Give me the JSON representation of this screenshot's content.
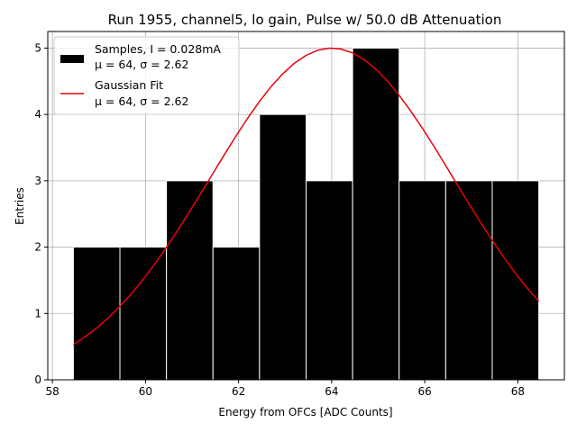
{
  "chart_data": {
    "type": "bar",
    "title": "Run 1955, channel5, lo gain, Pulse w/ 50.0 dB Attenuation",
    "xlabel": "Energy from OFCs [ADC Counts]",
    "ylabel": "Entries",
    "xlim": [
      57.9,
      69.0
    ],
    "ylim": [
      0,
      5.25
    ],
    "xticks": [
      58,
      60,
      62,
      64,
      66,
      68
    ],
    "yticks": [
      0,
      1,
      2,
      3,
      4,
      5
    ],
    "grid": true,
    "legend_position": "top-left",
    "bins": {
      "edges": [
        58.45,
        59.45,
        60.45,
        61.45,
        62.45,
        63.45,
        64.45,
        65.45,
        66.45,
        67.45,
        68.45
      ],
      "counts": [
        2,
        2,
        3,
        2,
        4,
        3,
        5,
        3,
        3,
        3
      ]
    },
    "series": [
      {
        "name": "Samples, I = 0.028mA",
        "name_line2": "μ = 64, σ = 2.62",
        "kind": "histogram",
        "color": "#000000",
        "edge_color": "#ffffff"
      },
      {
        "name": "Gaussian Fit",
        "name_line2": "μ = 64, σ = 2.62",
        "kind": "line",
        "color": "#e8000b",
        "mu": 64,
        "sigma": 2.62,
        "amplitude": 5.0,
        "x_range": [
          58.45,
          68.45
        ]
      }
    ]
  }
}
